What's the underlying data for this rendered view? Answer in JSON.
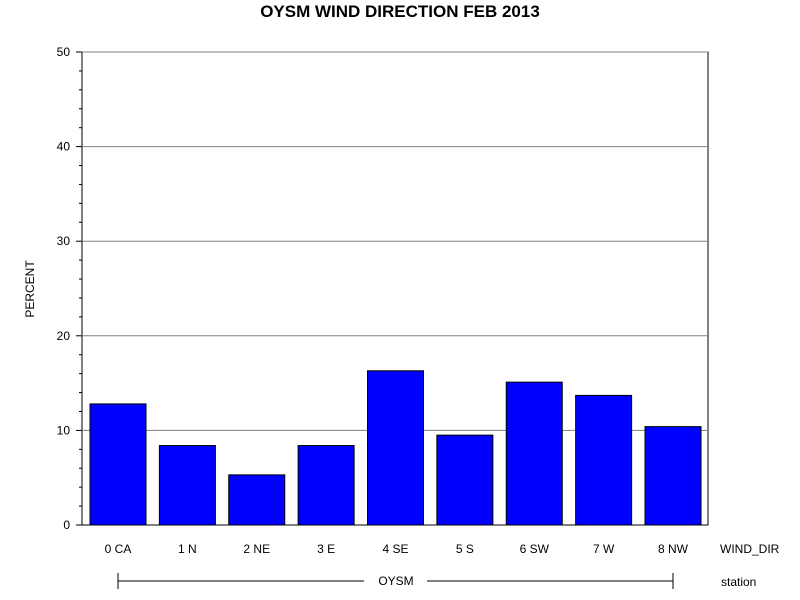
{
  "chart_data": {
    "type": "bar",
    "title": "OYSM WIND DIRECTION FEB 2013",
    "ylabel": "PERCENT",
    "xlabel": "WIND_DIR",
    "group_axis_label": "station",
    "group_label": "OYSM",
    "categories": [
      "0 CA",
      "1 N",
      "2 NE",
      "3 E",
      "4 SE",
      "5 S",
      "6 SW",
      "7 W",
      "8 NW"
    ],
    "values": [
      12.8,
      8.4,
      5.3,
      8.4,
      16.3,
      9.5,
      15.1,
      13.7,
      10.4
    ],
    "ylim": [
      0,
      50
    ],
    "yticks": [
      0,
      10,
      20,
      30,
      40,
      50
    ],
    "grid": true,
    "bar_color": "#0000ff",
    "bar_stroke": "#000000"
  }
}
